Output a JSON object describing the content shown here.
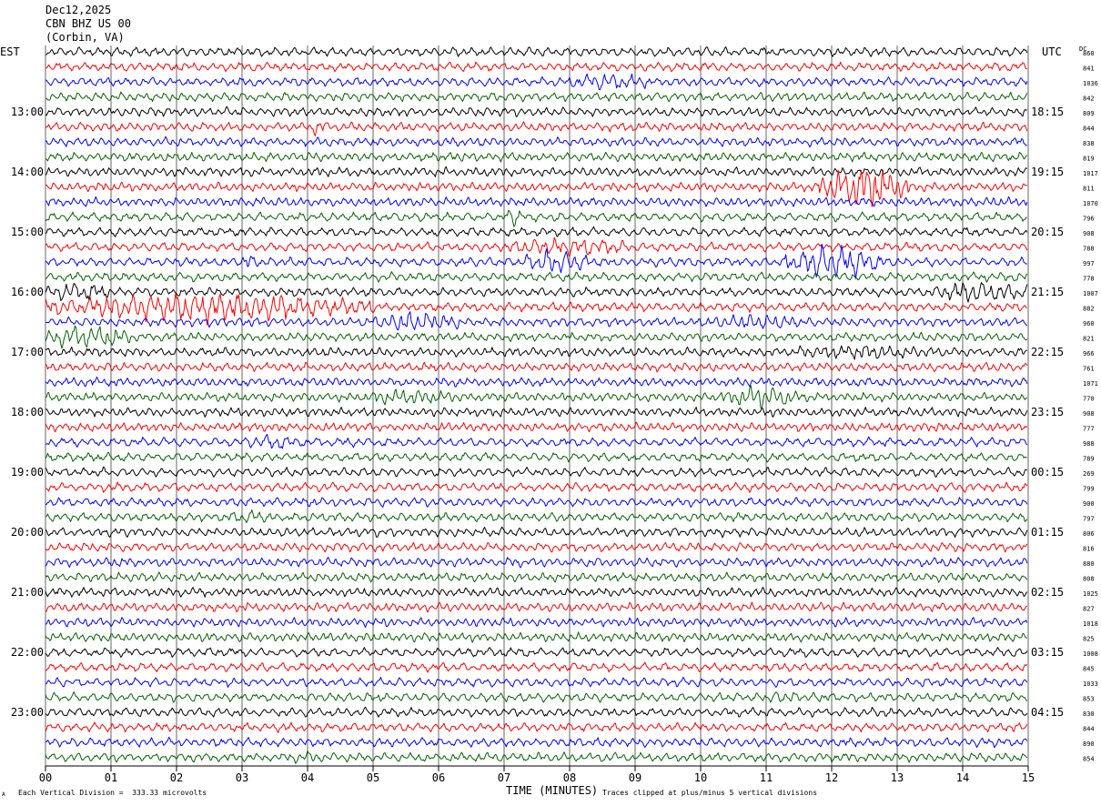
{
  "header": {
    "date": "Dec12,2025",
    "station": "CBN BHZ US 00",
    "location": "(Corbin, VA)"
  },
  "left_tz": "EST",
  "right_tz": "UTC",
  "dc_label": "DC",
  "footer": {
    "division": "Each Vertical Division =  333.33 microvolts",
    "clip_note": "Traces clipped at plus/minus 5 vertical divisions",
    "corner_mark": "A"
  },
  "colors": {
    "black": "#000000",
    "red": "#ff0000",
    "blue": "#0000ff",
    "green": "#006400",
    "grid": "#000000"
  },
  "chart_data": {
    "type": "line",
    "title": "",
    "xlabel": "TIME (MINUTES)",
    "ylabel": "",
    "xlim": [
      0,
      15
    ],
    "x_ticks": [
      "00",
      "01",
      "02",
      "03",
      "04",
      "05",
      "06",
      "07",
      "08",
      "09",
      "10",
      "11",
      "12",
      "13",
      "14",
      "15"
    ],
    "row_minutes": 15,
    "trace_color_cycle": [
      "black",
      "red",
      "blue",
      "green"
    ],
    "left_hour_labels": [
      "13:00",
      "14:00",
      "15:00",
      "16:00",
      "17:00",
      "18:00",
      "19:00",
      "20:00",
      "21:00",
      "22:00",
      "23:00"
    ],
    "right_hour_labels": [
      "18:15",
      "19:15",
      "20:15",
      "21:15",
      "22:15",
      "23:15",
      "00:15",
      "01:15",
      "02:15",
      "03:15",
      "04:15"
    ],
    "dc_offsets": [
      "860",
      "841",
      "1036",
      "842",
      "809",
      "844",
      "838",
      "819",
      "1017",
      "811",
      "1070",
      "796",
      "908",
      "788",
      "997",
      "778",
      "1007",
      "882",
      "960",
      "821",
      "966",
      "761",
      "1071",
      "770",
      "908",
      "777",
      "988",
      "789",
      "269",
      "799",
      "900",
      "797",
      "806",
      "816",
      "880",
      "808",
      "1025",
      "827",
      "1018",
      "825",
      "1008",
      "845",
      "1033",
      "853",
      "830",
      "844",
      "890",
      "854"
    ],
    "events": [
      {
        "row": 2,
        "start_min": 8.0,
        "end_min": 9.2,
        "amp": 2.2
      },
      {
        "row": 5,
        "start_min": 4.0,
        "end_min": 4.3,
        "amp": 2.0
      },
      {
        "row": 9,
        "start_min": 11.8,
        "end_min": 13.2,
        "amp": 5.0
      },
      {
        "row": 11,
        "start_min": 7.0,
        "end_min": 7.3,
        "amp": 2.0
      },
      {
        "row": 13,
        "start_min": 7.0,
        "end_min": 9.0,
        "amp": 2.2
      },
      {
        "row": 14,
        "start_min": 3.0,
        "end_min": 3.2,
        "amp": 2.5
      },
      {
        "row": 14,
        "start_min": 7.3,
        "end_min": 8.3,
        "amp": 3.0
      },
      {
        "row": 14,
        "start_min": 11.3,
        "end_min": 12.8,
        "amp": 4.0
      },
      {
        "row": 16,
        "start_min": 0.0,
        "end_min": 1.0,
        "amp": 2.2
      },
      {
        "row": 16,
        "start_min": 13.5,
        "end_min": 15.0,
        "amp": 2.5
      },
      {
        "row": 17,
        "start_min": 0.0,
        "end_min": 5.0,
        "amp": 3.5
      },
      {
        "row": 18,
        "start_min": 5.0,
        "end_min": 6.3,
        "amp": 2.5
      },
      {
        "row": 18,
        "start_min": 10.2,
        "end_min": 11.5,
        "amp": 2.0
      },
      {
        "row": 19,
        "start_min": 0.0,
        "end_min": 1.3,
        "amp": 3.0
      },
      {
        "row": 20,
        "start_min": 11.5,
        "end_min": 13.5,
        "amp": 1.8
      },
      {
        "row": 23,
        "start_min": 4.8,
        "end_min": 6.3,
        "amp": 1.8
      },
      {
        "row": 23,
        "start_min": 10.3,
        "end_min": 11.5,
        "amp": 2.5
      },
      {
        "row": 26,
        "start_min": 3.0,
        "end_min": 3.8,
        "amp": 1.8
      },
      {
        "row": 31,
        "start_min": 2.8,
        "end_min": 3.5,
        "amp": 1.5
      },
      {
        "row": 43,
        "start_min": 11.0,
        "end_min": 11.5,
        "amp": 1.6
      },
      {
        "row": 47,
        "start_min": 3.7,
        "end_min": 4.1,
        "amp": 1.6
      }
    ]
  }
}
